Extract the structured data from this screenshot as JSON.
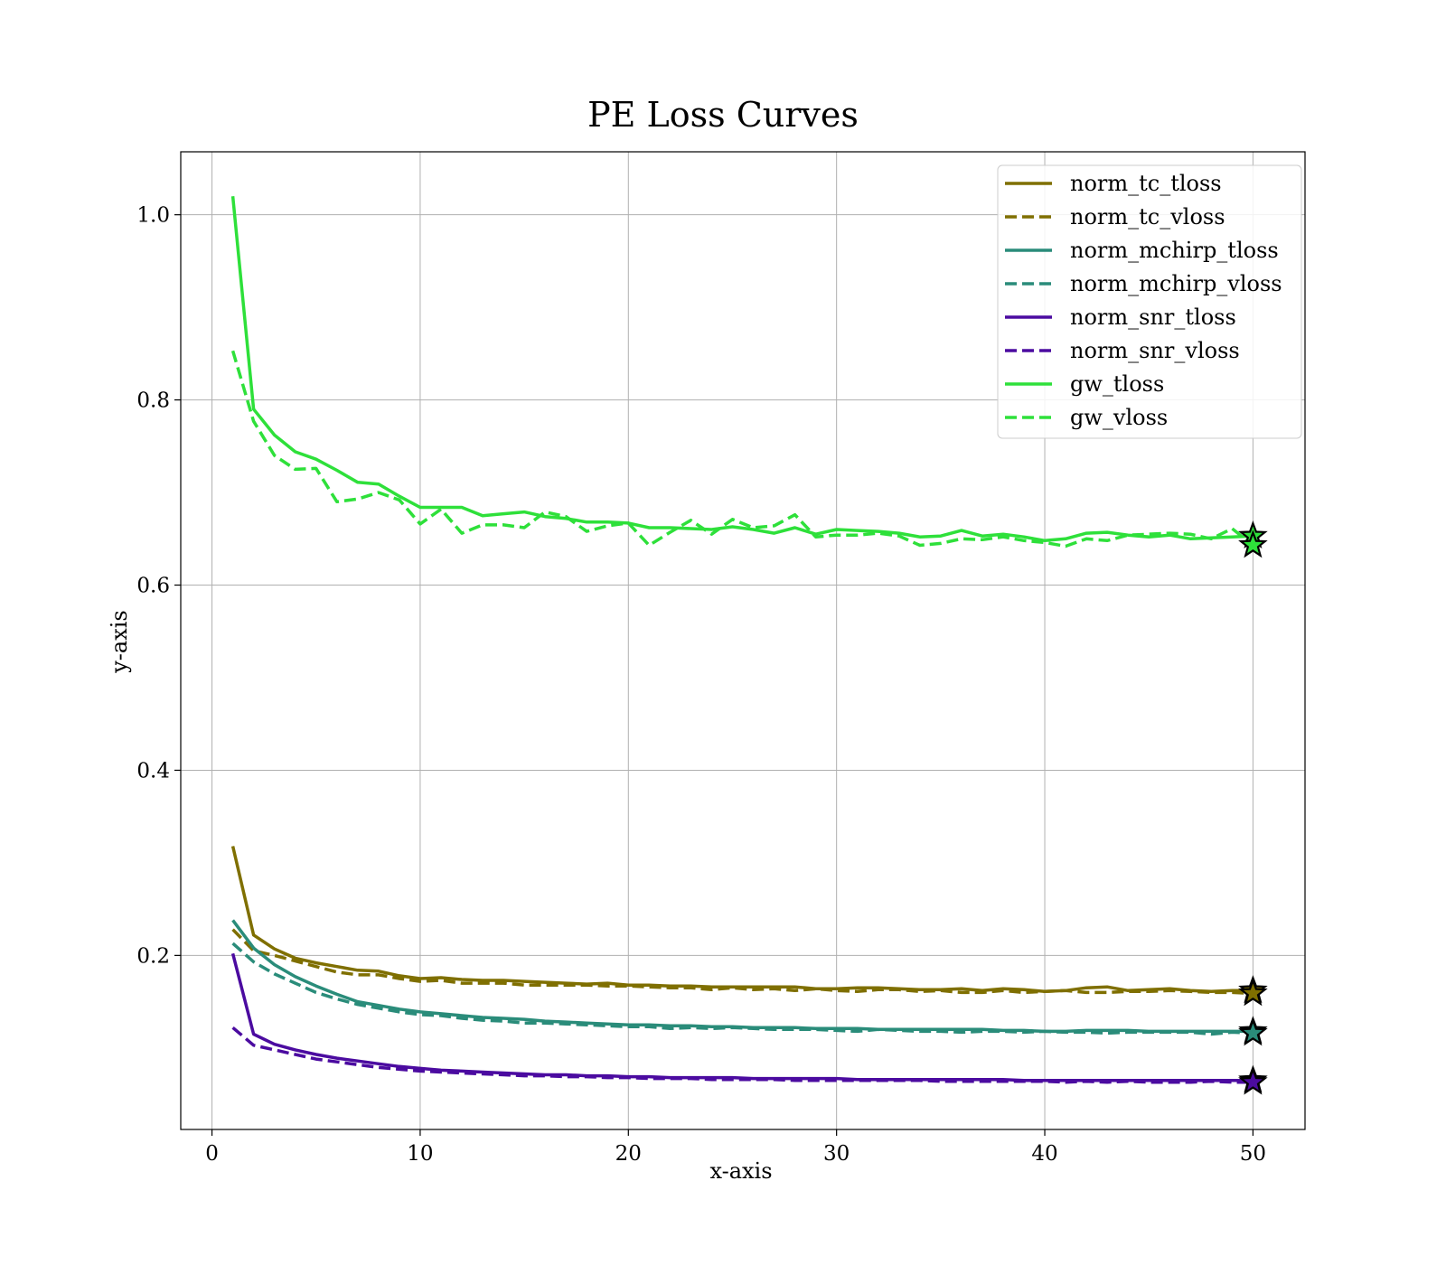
{
  "chart_data": {
    "type": "line",
    "title": "PE Loss Curves",
    "xlabel": "x-axis",
    "ylabel": "y-axis",
    "xlim": [
      -1.5,
      52.5
    ],
    "ylim": [
      0.012,
      1.068
    ],
    "xticks": [
      0,
      10,
      20,
      30,
      40,
      50
    ],
    "xtick_labels": [
      "0",
      "10",
      "20",
      "30",
      "40",
      "50"
    ],
    "yticks": [
      0.2,
      0.4,
      0.6,
      0.8,
      1.0
    ],
    "ytick_labels": [
      "0.2",
      "0.4",
      "0.6",
      "0.8",
      "1.0"
    ],
    "grid": true,
    "legend_position": "top-right",
    "end_marker": "star",
    "x": [
      1,
      2,
      3,
      4,
      5,
      6,
      7,
      8,
      9,
      10,
      11,
      12,
      13,
      14,
      15,
      16,
      17,
      18,
      19,
      20,
      21,
      22,
      23,
      24,
      25,
      26,
      27,
      28,
      29,
      30,
      31,
      32,
      33,
      34,
      35,
      36,
      37,
      38,
      39,
      40,
      41,
      42,
      43,
      44,
      45,
      46,
      47,
      48,
      49,
      50
    ],
    "series": [
      {
        "name": "norm_tc_tloss",
        "color": "#7f6f00",
        "dash": "solid",
        "values": [
          0.318,
          0.222,
          0.207,
          0.197,
          0.192,
          0.188,
          0.184,
          0.183,
          0.178,
          0.175,
          0.176,
          0.174,
          0.173,
          0.173,
          0.172,
          0.171,
          0.17,
          0.169,
          0.17,
          0.168,
          0.168,
          0.167,
          0.167,
          0.166,
          0.166,
          0.166,
          0.166,
          0.166,
          0.164,
          0.164,
          0.165,
          0.165,
          0.164,
          0.163,
          0.163,
          0.164,
          0.162,
          0.164,
          0.163,
          0.161,
          0.162,
          0.165,
          0.166,
          0.162,
          0.163,
          0.164,
          0.162,
          0.161,
          0.162,
          0.162
        ]
      },
      {
        "name": "norm_tc_vloss",
        "color": "#7f6f00",
        "dash": "dashed",
        "values": [
          0.228,
          0.205,
          0.2,
          0.194,
          0.188,
          0.182,
          0.179,
          0.179,
          0.175,
          0.172,
          0.173,
          0.17,
          0.17,
          0.17,
          0.168,
          0.168,
          0.168,
          0.168,
          0.167,
          0.167,
          0.166,
          0.165,
          0.165,
          0.163,
          0.165,
          0.163,
          0.164,
          0.162,
          0.164,
          0.162,
          0.161,
          0.163,
          0.163,
          0.161,
          0.162,
          0.16,
          0.16,
          0.162,
          0.16,
          0.161,
          0.162,
          0.16,
          0.16,
          0.161,
          0.161,
          0.162,
          0.161,
          0.16,
          0.16,
          0.159
        ]
      },
      {
        "name": "norm_mchirp_tloss",
        "color": "#2a8c7a",
        "dash": "solid",
        "values": [
          0.238,
          0.208,
          0.19,
          0.177,
          0.167,
          0.158,
          0.15,
          0.146,
          0.142,
          0.139,
          0.137,
          0.135,
          0.133,
          0.132,
          0.131,
          0.129,
          0.128,
          0.127,
          0.126,
          0.125,
          0.125,
          0.124,
          0.124,
          0.123,
          0.123,
          0.122,
          0.122,
          0.122,
          0.121,
          0.121,
          0.121,
          0.12,
          0.12,
          0.12,
          0.12,
          0.12,
          0.12,
          0.119,
          0.119,
          0.118,
          0.118,
          0.119,
          0.119,
          0.119,
          0.118,
          0.118,
          0.118,
          0.118,
          0.118,
          0.118
        ]
      },
      {
        "name": "norm_mchirp_vloss",
        "color": "#2a8c7a",
        "dash": "dashed",
        "values": [
          0.213,
          0.193,
          0.18,
          0.17,
          0.16,
          0.153,
          0.147,
          0.143,
          0.139,
          0.136,
          0.135,
          0.132,
          0.13,
          0.129,
          0.127,
          0.127,
          0.126,
          0.125,
          0.124,
          0.123,
          0.123,
          0.121,
          0.122,
          0.121,
          0.122,
          0.121,
          0.12,
          0.12,
          0.12,
          0.119,
          0.118,
          0.12,
          0.119,
          0.118,
          0.118,
          0.117,
          0.118,
          0.118,
          0.117,
          0.118,
          0.117,
          0.117,
          0.116,
          0.117,
          0.117,
          0.117,
          0.117,
          0.115,
          0.117,
          0.116
        ]
      },
      {
        "name": "norm_snr_tloss",
        "color": "#4b0ba0",
        "dash": "solid",
        "values": [
          0.202,
          0.115,
          0.104,
          0.098,
          0.093,
          0.089,
          0.086,
          0.083,
          0.08,
          0.078,
          0.076,
          0.075,
          0.074,
          0.073,
          0.072,
          0.071,
          0.071,
          0.07,
          0.07,
          0.069,
          0.069,
          0.068,
          0.068,
          0.068,
          0.068,
          0.067,
          0.067,
          0.067,
          0.067,
          0.067,
          0.066,
          0.066,
          0.066,
          0.066,
          0.066,
          0.066,
          0.066,
          0.066,
          0.065,
          0.065,
          0.065,
          0.065,
          0.065,
          0.065,
          0.065,
          0.065,
          0.065,
          0.065,
          0.065,
          0.065
        ]
      },
      {
        "name": "norm_snr_vloss",
        "color": "#4b0ba0",
        "dash": "dashed",
        "values": [
          0.122,
          0.103,
          0.098,
          0.093,
          0.088,
          0.085,
          0.082,
          0.079,
          0.077,
          0.075,
          0.074,
          0.073,
          0.072,
          0.071,
          0.07,
          0.07,
          0.069,
          0.069,
          0.068,
          0.068,
          0.067,
          0.067,
          0.067,
          0.066,
          0.066,
          0.066,
          0.066,
          0.065,
          0.065,
          0.065,
          0.065,
          0.065,
          0.065,
          0.065,
          0.064,
          0.064,
          0.064,
          0.064,
          0.064,
          0.064,
          0.063,
          0.064,
          0.063,
          0.064,
          0.063,
          0.063,
          0.063,
          0.064,
          0.063,
          0.063
        ]
      },
      {
        "name": "gw_tloss",
        "color": "#2ee03a",
        "dash": "solid",
        "values": [
          1.02,
          0.79,
          0.762,
          0.744,
          0.736,
          0.724,
          0.711,
          0.709,
          0.696,
          0.684,
          0.684,
          0.684,
          0.675,
          0.677,
          0.679,
          0.674,
          0.672,
          0.668,
          0.668,
          0.667,
          0.662,
          0.662,
          0.661,
          0.66,
          0.663,
          0.66,
          0.656,
          0.662,
          0.655,
          0.66,
          0.659,
          0.658,
          0.656,
          0.652,
          0.653,
          0.659,
          0.653,
          0.655,
          0.652,
          0.648,
          0.65,
          0.656,
          0.657,
          0.654,
          0.652,
          0.654,
          0.65,
          0.651,
          0.652,
          0.653
        ]
      },
      {
        "name": "gw_vloss",
        "color": "#2ee03a",
        "dash": "dashed",
        "values": [
          0.853,
          0.777,
          0.74,
          0.725,
          0.726,
          0.69,
          0.693,
          0.7,
          0.692,
          0.666,
          0.682,
          0.656,
          0.665,
          0.665,
          0.662,
          0.679,
          0.674,
          0.658,
          0.664,
          0.667,
          0.643,
          0.657,
          0.67,
          0.655,
          0.671,
          0.662,
          0.664,
          0.676,
          0.652,
          0.654,
          0.654,
          0.656,
          0.653,
          0.643,
          0.645,
          0.65,
          0.649,
          0.652,
          0.648,
          0.646,
          0.642,
          0.65,
          0.648,
          0.654,
          0.655,
          0.656,
          0.655,
          0.65,
          0.661,
          0.643
        ]
      }
    ]
  }
}
